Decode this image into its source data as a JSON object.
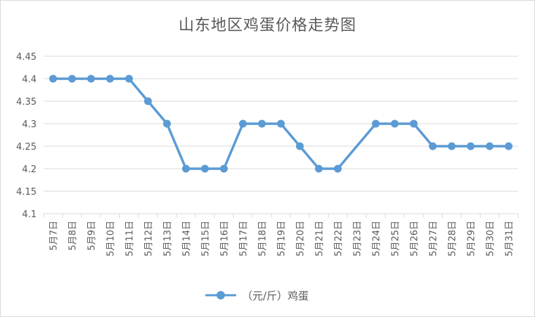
{
  "chart_data": {
    "type": "line",
    "title": "山东地区鸡蛋价格走势图",
    "xlabel": "",
    "ylabel": "",
    "categories": [
      "5月7日",
      "5月8日",
      "5月9日",
      "5月10日",
      "5月11日",
      "5月12日",
      "5月13日",
      "5月14日",
      "5月15日",
      "5月16日",
      "5月17日",
      "5月18日",
      "5月19日",
      "5月20日",
      "5月21日",
      "5月22日",
      "5月23日",
      "5月24日",
      "5月25日",
      "5月26日",
      "5月27日",
      "5月28日",
      "5月29日",
      "5月30日",
      "5月31日"
    ],
    "series": [
      {
        "name": "（元/斤）鸡蛋",
        "color": "#5b9bd5",
        "values": [
          4.4,
          4.4,
          4.4,
          4.4,
          4.4,
          4.35,
          4.3,
          4.2,
          4.2,
          4.2,
          4.3,
          4.3,
          4.3,
          4.25,
          4.2,
          4.2,
          null,
          4.3,
          4.3,
          4.3,
          4.25,
          4.25,
          4.25,
          4.25,
          4.25
        ]
      }
    ],
    "ylim": [
      4.1,
      4.45
    ],
    "yticks": [
      "4.1",
      "4.15",
      "4.2",
      "4.25",
      "4.3",
      "4.35",
      "4.4",
      "4.45"
    ],
    "grid": true,
    "legend": "bottom"
  }
}
